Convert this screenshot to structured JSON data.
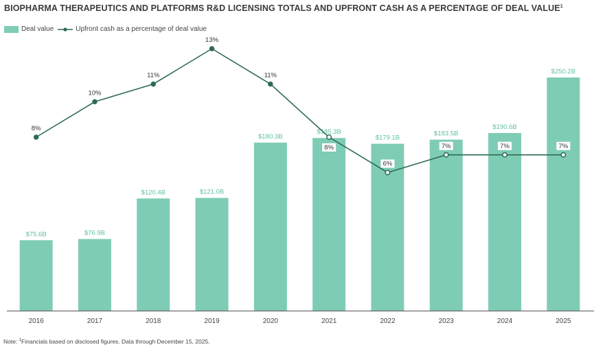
{
  "title": "BIOPHARMA THERAPEUTICS AND PLATFORMS R&D LICENSING TOTALS AND UPFRONT CASH AS A PERCENTAGE OF DEAL VALUE",
  "title_footnote": "1",
  "legend": {
    "bar_label": "Deal value",
    "line_label": "Upfront cash as a percentage of deal value"
  },
  "note": {
    "prefix": "Note: ",
    "footnote_mark": "1",
    "text": "Financials based on disclosed figures. Data through December 15, 2025."
  },
  "colors": {
    "bar": "#7fccb6",
    "bar_label": "#5fbfa3",
    "line": "#2e6b52",
    "axis": "#555555"
  },
  "chart_data": {
    "type": "bar+line",
    "categories": [
      "2016",
      "2017",
      "2018",
      "2019",
      "2020",
      "2021",
      "2022",
      "2023",
      "2024",
      "2025"
    ],
    "series": [
      {
        "name": "Deal value",
        "type": "bar",
        "unit": "$B",
        "values": [
          75.6,
          76.9,
          120.4,
          121.0,
          180.3,
          185.3,
          179.1,
          183.5,
          190.6,
          250.2
        ],
        "labels": [
          "$75.6B",
          "$76.9B",
          "$120.4B",
          "$121.0B",
          "$180.3B",
          "$185.3B",
          "$179.1B",
          "$183.5B",
          "$190.6B",
          "$250.2B"
        ]
      },
      {
        "name": "Upfront cash as a percentage of deal value",
        "type": "line",
        "unit": "%",
        "values": [
          8,
          10,
          11,
          13,
          11,
          8,
          6,
          7,
          7,
          7
        ],
        "labels": [
          "8%",
          "10%",
          "11%",
          "13%",
          "11%",
          "8%",
          "6%",
          "7%",
          "7%",
          "7%"
        ]
      }
    ],
    "xlabel": "",
    "ylabel": ""
  }
}
